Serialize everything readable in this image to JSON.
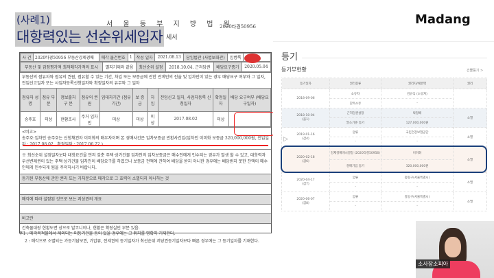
{
  "slide": {
    "tag": "(사례1)",
    "title": "대항력있는 선순위세입자",
    "title_suffix": "세서"
  },
  "doc": {
    "court": "서 울 동 부 지 방 법 원",
    "case_no": "2020타경50956",
    "stamp": "법원 인",
    "r1": [
      "사 건",
      "2020타경50956 부동산강제경매",
      "매각 물건번호",
      "1",
      "작성 일자",
      "2021.08.13",
      "담임법관 (사법보좌관)",
      "임병록"
    ],
    "r2": [
      "부동산 및 감정평가액 최저매각가격의 표시",
      "별지기재와 같음",
      "최선순위 설정",
      "2018.10.04. 근저당권",
      "배당요구종기",
      "2020.05.04"
    ],
    "r3": "부동산의 점유자와 점유의 권원, 점유할 수 있는 기간, 차임 또는 보증금에 관한 관계인의 진술 및 임차인이 있는 경우 배당요구 여부와 그 일자, 전입신고일자 또는 사업자등록신청일자와 확정일자의 유무와 그 일자",
    "headers": [
      "점유자 성 명",
      "점유 부분",
      "정보출처 구 분",
      "점유의 권 원",
      "임대차기간 (점유기간)",
      "보 증 금",
      "차 임",
      "전입신고 일자, 사업자등록 신청일자",
      "확정일자",
      "배당 요구여부 (배당요구일자)"
    ],
    "row": [
      "송주호",
      "미상",
      "현황조사",
      "주거 임차인",
      "미상",
      "미상",
      "미상",
      "2017.08.02",
      "미상",
      ""
    ],
    "remark_label": "<비고>",
    "remark": "송주호:임차인 송주호는 신청채권자 이미화의 배우자이며 본 경매사건은 임차보증금 반환사건임(임차인 이미화 보증금 320,000,000원, 전입일자 : 2017.08.02., 확정일자 : 2017.06.22.)",
    "warning": "※ 최선순위 설정일자보다 대항요건을 먼저 갖춘 주택·상가건물 임차인의 임차보증금은 매수인에게 인수되는 경우가 발생 할 수 있고, 대항력과 우선변제권이 있는 주택·상가건물 임차인이 배당요구를 하였으나 보증금 전액에 관하여 배당을 받지 아니한 경우에는 배당받지 못한 잔액이 매수인에게 인수되게 됨을 주의하시기 바랍니다.",
    "sec1": "등기된 부동산에 관한 권리 또는 가처분으로 매각으로 그 효력이 소멸되지 아니하는 것",
    "sec2": "매각에 따라 설정된 것으로 보는 지상권의 개요",
    "sec3": "비고란",
    "sec3_text": "건축물대장 현황도면 상으로 발코니이나, 현황은 확장실인 부분 있음.",
    "note1": "주1 : 매각목적물에서 제외되는 미등기건물 등이 있을 경우에는 그 취지를 명확히 기재한다.",
    "note2": "2 : 매각으로 소멸되는 가등기담보권, 가압류, 전세권의 등기일자가 최선순위 저당권등기일자보다 빠른 경우에는 그 등기일자를 기재한다."
  },
  "right": {
    "logo": "Madang",
    "heading": "등기",
    "sub": "등기부현황",
    "link": "건물등기 >",
    "cols": [
      "등기일자",
      "권리종류",
      "권리자/채권액",
      "권리"
    ],
    "rows": [
      {
        "date": "2018-09-06",
        "no": "",
        "type1": "소유자",
        "type2": "단독소유",
        "holder1": "김규식 (소유자)",
        "holder2": "-",
        "status": ""
      },
      {
        "date": "2018-10-04",
        "no": "(을1)",
        "type1": "근저당권설정",
        "type2": "말소기준 등기",
        "holder1": "박정배",
        "holder2": "127,000,000원",
        "status": "소멸"
      },
      {
        "date": "2019-01-16",
        "no": "(갑4)",
        "type1": "압류",
        "type2": "-",
        "holder1": "국민건강보험공단",
        "holder2": "-",
        "status": "소멸"
      },
      {
        "date": "2020-02-18",
        "no": "(갑6)",
        "type1": "강제경매개시결정 (2020타경50956)",
        "type2": "경매기입 등기",
        "holder1": "이미화",
        "holder2": "320,000,000원",
        "status": "소멸"
      },
      {
        "date": "2020-04-17",
        "no": "(갑7)",
        "type1": "압류",
        "type2": "-",
        "holder1": "중랑구(서울특별시)",
        "holder2": "-",
        "status": "소멸"
      },
      {
        "date": "2020-06-07",
        "no": "(갑8)",
        "type1": "압류",
        "type2": "-",
        "holder1": "강동구(서울특별시)",
        "holder2": "-",
        "status": "소멸"
      }
    ]
  },
  "video": {
    "caption": "소사장소피아"
  },
  "colors": {
    "highlight_red": "#e22222",
    "highlight_blue": "#1a3f7a",
    "title_bg": "#c9c9c9"
  }
}
